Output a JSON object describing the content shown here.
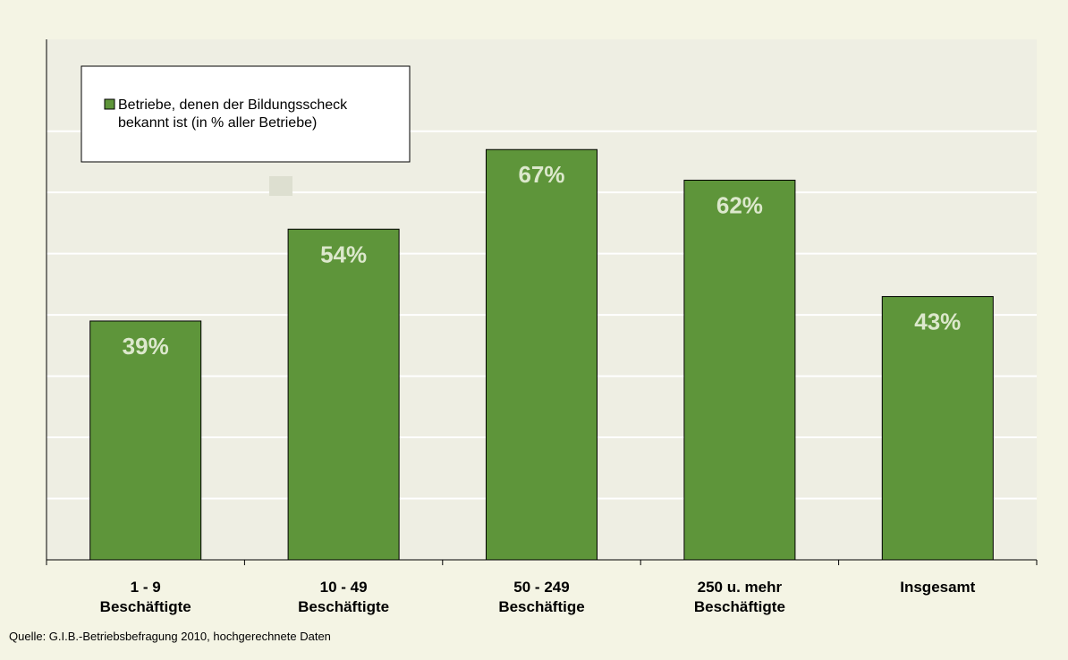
{
  "chart_data": {
    "type": "bar",
    "categories": [
      [
        "1 - 9",
        "Beschäftigte"
      ],
      [
        "10 - 49",
        "Beschäftigte"
      ],
      [
        "50 - 249",
        "Beschäftige"
      ],
      [
        "250 u. mehr",
        "Beschäftigte"
      ],
      [
        "Insgesamt"
      ]
    ],
    "series": [
      {
        "name": "Betriebe, denen der Bildungsscheck bekannt ist (in % aller Betriebe)",
        "values": [
          39,
          54,
          67,
          62,
          43
        ],
        "labels": [
          "39%",
          "54%",
          "67%",
          "62%",
          "43%"
        ]
      }
    ],
    "legend": {
      "lines": [
        "Betriebe, denen der Bildungsscheck",
        "bekannt ist (in % aller Betriebe)"
      ],
      "placement": "top-left"
    },
    "ylim": [
      0,
      85
    ],
    "grid": true,
    "colors": {
      "bar": "#5e953a",
      "plot_bg": "#eeeee3",
      "grid": "#ffffff",
      "page_bg": "#f4f4e4"
    }
  },
  "source": "Quelle: G.I.B.-Betriebsbefragung 2010, hochgerechnete Daten"
}
